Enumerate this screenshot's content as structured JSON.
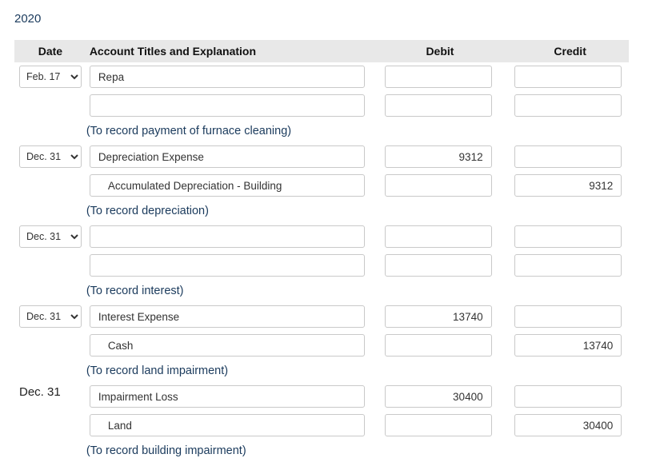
{
  "year": "2020",
  "header": {
    "date": "Date",
    "account": "Account Titles and Explanation",
    "debit": "Debit",
    "credit": "Credit"
  },
  "date_options": [
    "Feb. 17",
    "Dec. 31"
  ],
  "entries": [
    {
      "date_type": "select",
      "date": "Feb. 17",
      "lines": [
        {
          "account": "Repa",
          "indent": false,
          "debit": "",
          "credit": ""
        },
        {
          "account": "",
          "indent": false,
          "debit": "",
          "credit": ""
        }
      ],
      "explanation": "(To record payment of furnace cleaning)"
    },
    {
      "date_type": "select",
      "date": "Dec. 31",
      "lines": [
        {
          "account": "Depreciation Expense",
          "indent": false,
          "debit": "9312",
          "credit": ""
        },
        {
          "account": "Accumulated Depreciation - Building",
          "indent": true,
          "debit": "",
          "credit": "9312"
        }
      ],
      "explanation": "(To record depreciation)"
    },
    {
      "date_type": "select",
      "date": "Dec. 31",
      "lines": [
        {
          "account": "",
          "indent": false,
          "debit": "",
          "credit": ""
        },
        {
          "account": "",
          "indent": false,
          "debit": "",
          "credit": ""
        }
      ],
      "explanation": "(To record interest)"
    },
    {
      "date_type": "select",
      "date": "Dec. 31",
      "lines": [
        {
          "account": "Interest Expense",
          "indent": false,
          "debit": "13740",
          "credit": ""
        },
        {
          "account": "Cash",
          "indent": true,
          "debit": "",
          "credit": "13740"
        }
      ],
      "explanation": "(To record land impairment)"
    },
    {
      "date_type": "static",
      "date": "Dec. 31",
      "lines": [
        {
          "account": "Impairment Loss",
          "indent": false,
          "debit": "30400",
          "credit": ""
        },
        {
          "account": "Land",
          "indent": true,
          "debit": "",
          "credit": "30400"
        }
      ],
      "explanation": "(To record building impairment)"
    }
  ],
  "colors": {
    "header_bg": "#e8e8e8",
    "text_accent": "#1a3a5c",
    "border": "#c9c9c9"
  }
}
